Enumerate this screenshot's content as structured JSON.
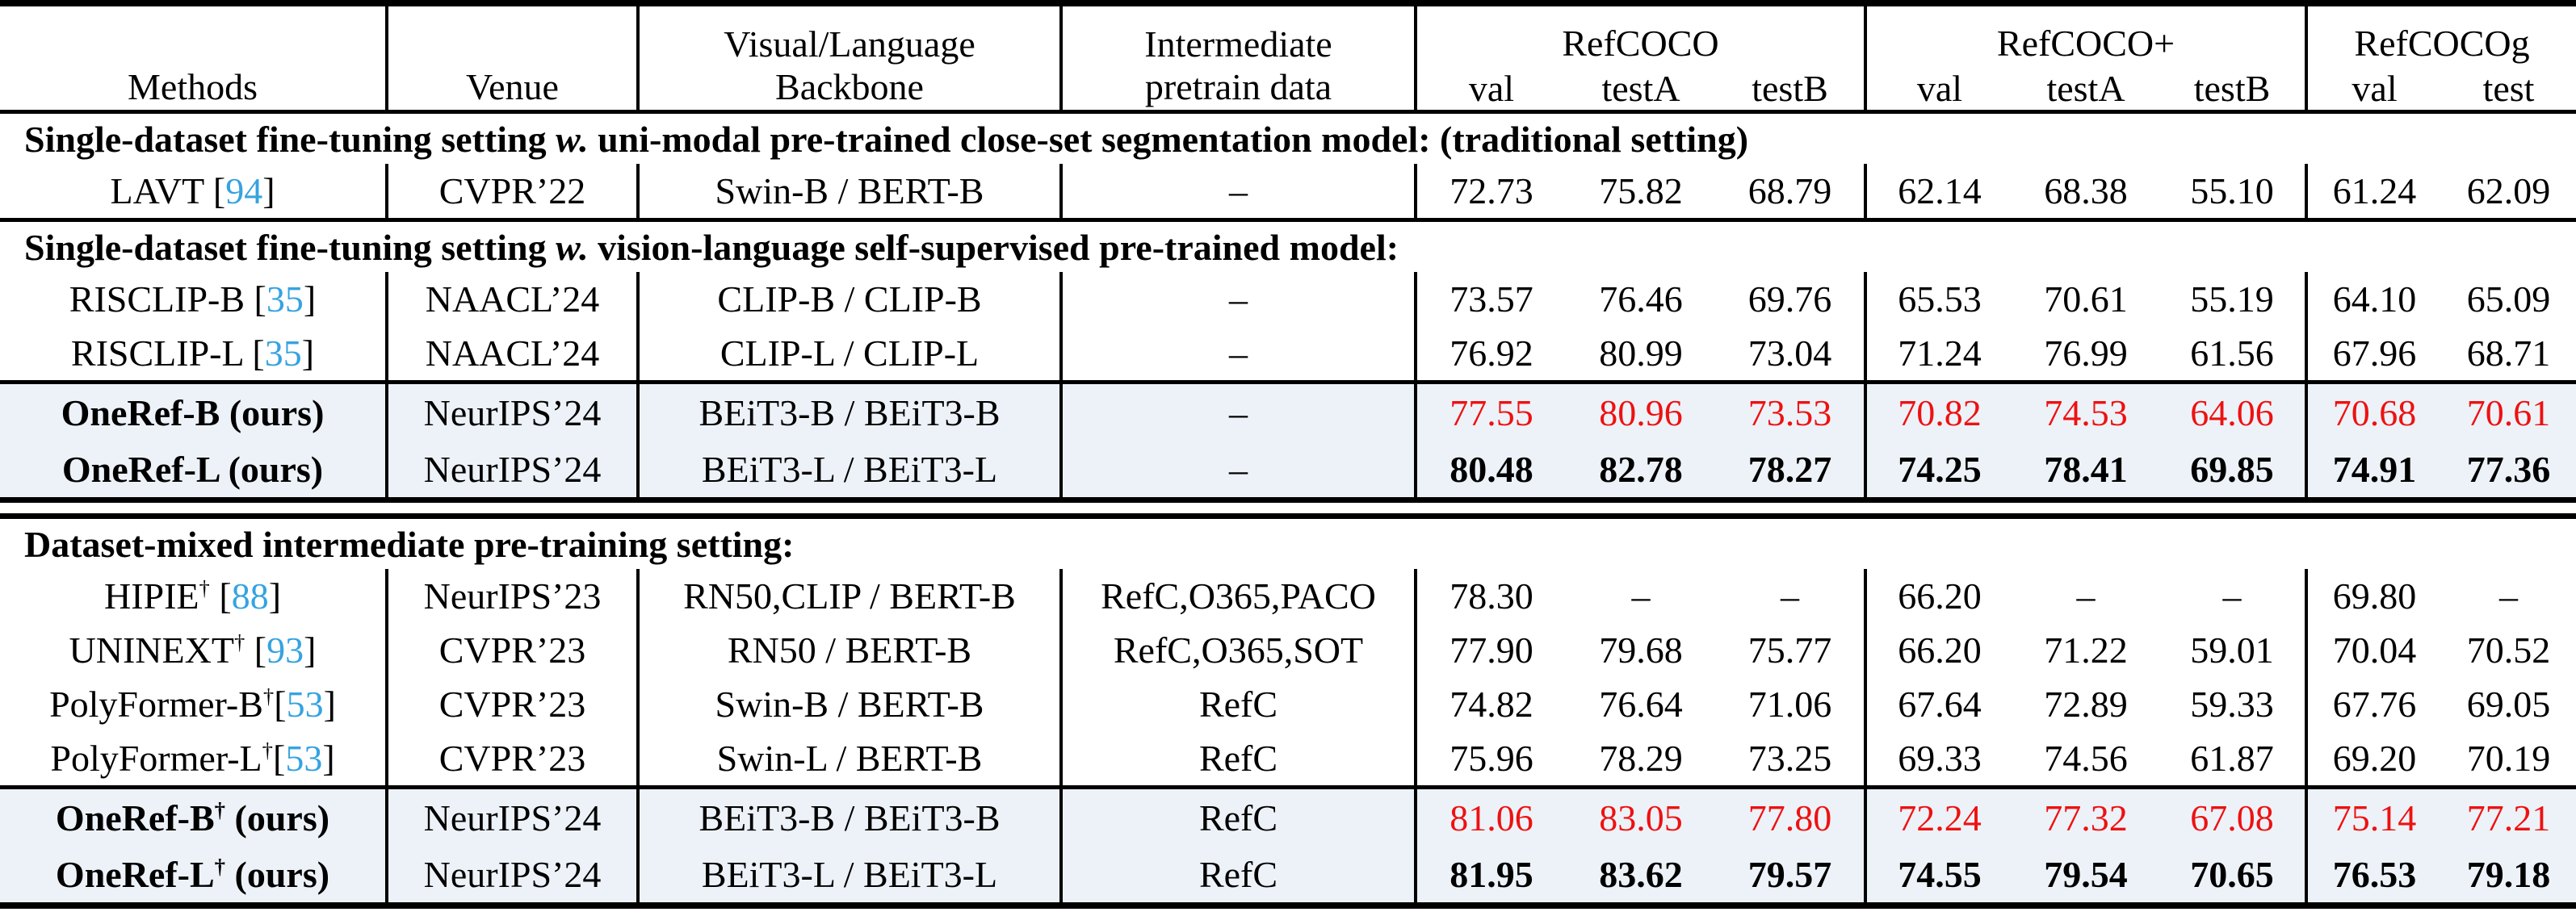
{
  "colors": {
    "citation_blue": "#36a3e0",
    "highlight_red": "#ee1111",
    "ours_row_background": "#edf2f8",
    "ink": "#000000",
    "paper": "#ffffff"
  },
  "table": {
    "columns": {
      "methods": "Methods",
      "venue": "Venue",
      "backbone_line1": "Visual/Language",
      "backbone_line2": "Backbone",
      "pretrain_line1": "Intermediate",
      "pretrain_line2": "pretrain data",
      "groups": [
        {
          "label": "RefCOCO",
          "subs": [
            "val",
            "testA",
            "testB"
          ]
        },
        {
          "label": "RefCOCO+",
          "subs": [
            "val",
            "testA",
            "testB"
          ]
        },
        {
          "label": "RefCOCOg",
          "subs": [
            "val",
            "test"
          ]
        }
      ]
    },
    "body": [
      {
        "type": "section",
        "parts": [
          {
            "t": "Single-dataset fine-tuning setting ",
            "i": false
          },
          {
            "t": "w.",
            "i": true
          },
          {
            "t": " uni-modal pre-trained close-set segmentation model: (traditional setting)",
            "i": false
          }
        ]
      },
      {
        "type": "row",
        "name": "LAVT",
        "sup": "",
        "cite": "94",
        "cite_sep": " ",
        "ours": "",
        "bold": false,
        "venue": "CVPR’22",
        "backbone": "Swin-B / BERT-B",
        "pretrain": "–",
        "values": [
          "72.73",
          "75.82",
          "68.79",
          "62.14",
          "68.38",
          "55.10",
          "61.24",
          "62.09"
        ],
        "vclass": "plain",
        "hl": false
      },
      {
        "type": "rule",
        "style": "thin"
      },
      {
        "type": "section",
        "parts": [
          {
            "t": "Single-dataset fine-tuning setting ",
            "i": false
          },
          {
            "t": "w.",
            "i": true
          },
          {
            "t": " vision-language self-supervised pre-trained model:",
            "i": false
          }
        ]
      },
      {
        "type": "row",
        "name": "RISCLIP-B",
        "sup": "",
        "cite": "35",
        "cite_sep": " ",
        "ours": "",
        "bold": false,
        "venue": "NAACL’24",
        "backbone": "CLIP-B / CLIP-B",
        "pretrain": "–",
        "values": [
          "73.57",
          "76.46",
          "69.76",
          "65.53",
          "70.61",
          "55.19",
          "64.10",
          "65.09"
        ],
        "vclass": "plain",
        "hl": false
      },
      {
        "type": "row",
        "name": "RISCLIP-L",
        "sup": "",
        "cite": "35",
        "cite_sep": " ",
        "ours": "",
        "bold": false,
        "venue": "NAACL’24",
        "backbone": "CLIP-L / CLIP-L",
        "pretrain": "–",
        "values": [
          "76.92",
          "80.99",
          "73.04",
          "71.24",
          "76.99",
          "61.56",
          "67.96",
          "68.71"
        ],
        "vclass": "plain",
        "hl": false
      },
      {
        "type": "rule",
        "style": "thin"
      },
      {
        "type": "row",
        "name": "OneRef-B",
        "sup": "",
        "cite": "",
        "cite_sep": "",
        "ours": "(ours)",
        "bold": true,
        "venue": "NeurIPS’24",
        "backbone": "BEiT3-B / BEiT3-B",
        "pretrain": "–",
        "values": [
          "77.55",
          "80.96",
          "73.53",
          "70.82",
          "74.53",
          "64.06",
          "70.68",
          "70.61"
        ],
        "vclass": "red",
        "hl": true
      },
      {
        "type": "row",
        "name": "OneRef-L",
        "sup": "",
        "cite": "",
        "cite_sep": "",
        "ours": "(ours)",
        "bold": true,
        "venue": "NeurIPS’24",
        "backbone": "BEiT3-L / BEiT3-L",
        "pretrain": "–",
        "values": [
          "80.48",
          "82.78",
          "78.27",
          "74.25",
          "78.41",
          "69.85",
          "74.91",
          "77.36"
        ],
        "vclass": "bold",
        "hl": true
      },
      {
        "type": "rule",
        "style": "double"
      },
      {
        "type": "section",
        "parts": [
          {
            "t": "Dataset-mixed intermediate pre-training setting:",
            "i": false
          }
        ]
      },
      {
        "type": "row",
        "name": "HIPIE",
        "sup": "†",
        "cite": "88",
        "cite_sep": " ",
        "ours": "",
        "bold": false,
        "venue": "NeurIPS’23",
        "backbone": "RN50,CLIP / BERT-B",
        "pretrain": "RefC,O365,PACO",
        "values": [
          "78.30",
          "–",
          "–",
          "66.20",
          "–",
          "–",
          "69.80",
          "–"
        ],
        "vclass": "plain",
        "hl": false
      },
      {
        "type": "row",
        "name": "UNINEXT",
        "sup": "†",
        "cite": "93",
        "cite_sep": " ",
        "ours": "",
        "bold": false,
        "venue": "CVPR’23",
        "backbone": "RN50 / BERT-B",
        "pretrain": "RefC,O365,SOT",
        "values": [
          "77.90",
          "79.68",
          "75.77",
          "66.20",
          "71.22",
          "59.01",
          "70.04",
          "70.52"
        ],
        "vclass": "plain",
        "hl": false
      },
      {
        "type": "row",
        "name": "PolyFormer-B",
        "sup": "†",
        "cite": "53",
        "cite_sep": "",
        "ours": "",
        "bold": false,
        "venue": "CVPR’23",
        "backbone": "Swin-B / BERT-B",
        "pretrain": "RefC",
        "values": [
          "74.82",
          "76.64",
          "71.06",
          "67.64",
          "72.89",
          "59.33",
          "67.76",
          "69.05"
        ],
        "vclass": "plain",
        "hl": false
      },
      {
        "type": "row",
        "name": "PolyFormer-L",
        "sup": "†",
        "cite": "53",
        "cite_sep": "",
        "ours": "",
        "bold": false,
        "venue": "CVPR’23",
        "backbone": "Swin-L / BERT-B",
        "pretrain": "RefC",
        "values": [
          "75.96",
          "78.29",
          "73.25",
          "69.33",
          "74.56",
          "61.87",
          "69.20",
          "70.19"
        ],
        "vclass": "plain",
        "hl": false
      },
      {
        "type": "rule",
        "style": "thin"
      },
      {
        "type": "row",
        "name": "OneRef-B",
        "sup": "†",
        "cite": "",
        "cite_sep": "",
        "ours": "(ours)",
        "bold": true,
        "venue": "NeurIPS’24",
        "backbone": "BEiT3-B / BEiT3-B",
        "pretrain": "RefC",
        "values": [
          "81.06",
          "83.05",
          "77.80",
          "72.24",
          "77.32",
          "67.08",
          "75.14",
          "77.21"
        ],
        "vclass": "red",
        "hl": true
      },
      {
        "type": "row",
        "name": "OneRef-L",
        "sup": "†",
        "cite": "",
        "cite_sep": "",
        "ours": "(ours)",
        "bold": true,
        "venue": "NeurIPS’24",
        "backbone": "BEiT3-L / BEiT3-L",
        "pretrain": "RefC",
        "values": [
          "81.95",
          "83.62",
          "79.57",
          "74.55",
          "79.54",
          "70.65",
          "76.53",
          "79.18"
        ],
        "vclass": "bold",
        "hl": true
      }
    ]
  }
}
